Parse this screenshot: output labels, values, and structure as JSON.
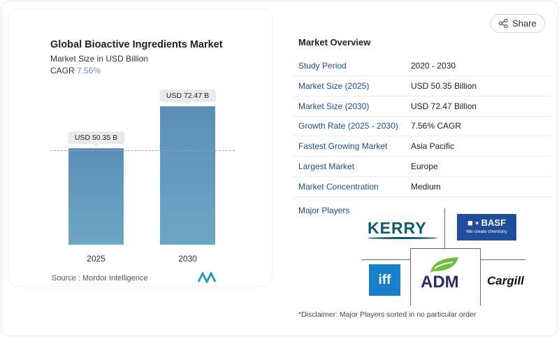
{
  "chart_data": {
    "type": "bar",
    "title": "Global Bioactive Ingredients Market",
    "subtitle": "Market Size in USD Billion",
    "cagr_label": "CAGR",
    "cagr_value": "7.56%",
    "categories": [
      "2025",
      "2030"
    ],
    "values": [
      50.35,
      72.47
    ],
    "data_labels": [
      "USD 50.35 B",
      "USD 72.47 B"
    ],
    "ylim": [
      0,
      80
    ],
    "source": "Source :  Mordor Intelligence"
  },
  "share": {
    "label": "Share"
  },
  "overview": {
    "title": "Market Overview",
    "rows": [
      {
        "k": "Study Period",
        "v": "2020 - 2030"
      },
      {
        "k": "Market Size (2025)",
        "v": "USD 50.35 Billion"
      },
      {
        "k": "Market Size (2030)",
        "v": "USD 72.47 Billion"
      },
      {
        "k": "Growth Rate (2025 - 2030)",
        "v": "7.56% CAGR"
      },
      {
        "k": "Fastest Growing Market",
        "v": "Asia Pacific"
      },
      {
        "k": "Largest Market",
        "v": "Europe"
      },
      {
        "k": "Market Concentration",
        "v": "Medium"
      }
    ]
  },
  "players": {
    "title": "Major Players",
    "logos": [
      "KERRY",
      "BASF",
      "We create chemistry",
      "iff",
      "ADM",
      "Cargill"
    ]
  },
  "disclaimer": "*Disclaimer: Major Players sorted in no particular order",
  "colors": {
    "bar": "#5b8fb6",
    "accent": "#1e4f7a"
  }
}
